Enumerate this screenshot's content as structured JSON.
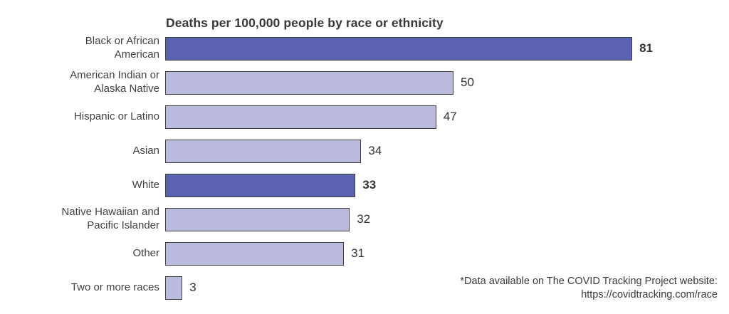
{
  "chart": {
    "title": "Deaths per 100,000 people by race or ethnicity"
  },
  "chart_data": {
    "type": "bar",
    "orientation": "horizontal",
    "title": "Deaths per 100,000 people by race or ethnicity",
    "categories": [
      "Black or African American",
      "American Indian or Alaska Native",
      "Hispanic or Latino",
      "Asian",
      "White",
      "Native Hawaiian and Pacific Islander",
      "Other",
      "Two or more races"
    ],
    "values": [
      81,
      50,
      47,
      34,
      33,
      32,
      31,
      3
    ],
    "highlighted": [
      true,
      false,
      false,
      false,
      true,
      false,
      false,
      false
    ],
    "data_labels": [
      81,
      50,
      47,
      34,
      33,
      32,
      31,
      3
    ],
    "xlim": [
      0,
      85
    ],
    "grid": false,
    "legend": "none",
    "colors": {
      "bar_highlight": "#5B63B1",
      "bar_normal": "#B9BADC",
      "bar_border": "#3F3F46",
      "text": "#3A3A3A"
    }
  },
  "footnote": {
    "line1": "*Data available on The COVID Tracking Project website:",
    "line2": "https://covidtracking.com/race"
  }
}
